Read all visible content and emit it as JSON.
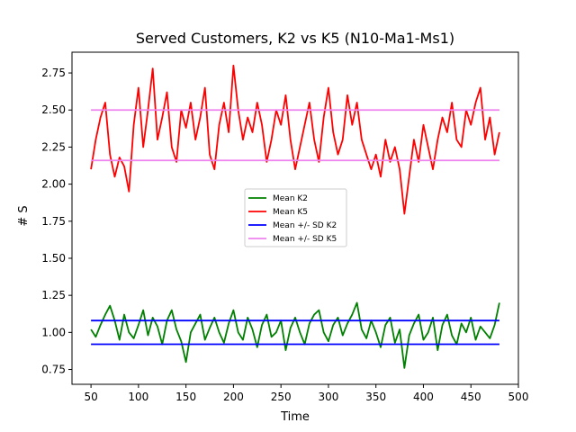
{
  "chart_data": {
    "type": "line",
    "title": "Served Customers, K2 vs K5 (N10-Ma1-Ms1)",
    "xlabel": "Time",
    "ylabel": "# S",
    "xlim": [
      30,
      500
    ],
    "ylim": [
      0.65,
      2.89
    ],
    "xticks": [
      50,
      100,
      150,
      200,
      250,
      300,
      350,
      400,
      450,
      500
    ],
    "yticks": [
      0.75,
      1.0,
      1.25,
      1.5,
      1.75,
      2.0,
      2.25,
      2.5,
      2.75
    ],
    "legend_position": "center",
    "legend": [
      {
        "label": "Mean K2",
        "color": "#008000"
      },
      {
        "label": "Mean K5",
        "color": "#ff0000"
      },
      {
        "label": "Mean +/- SD K2",
        "color": "#0000ff"
      },
      {
        "label": "Mean +/- SD K5",
        "color": "#ee82ee"
      }
    ],
    "series": [
      {
        "name": "Mean K2",
        "color": "#008000",
        "x": [
          50,
          55,
          60,
          65,
          70,
          75,
          80,
          85,
          90,
          95,
          100,
          105,
          110,
          115,
          120,
          125,
          130,
          135,
          140,
          145,
          150,
          155,
          160,
          165,
          170,
          175,
          180,
          185,
          190,
          195,
          200,
          205,
          210,
          215,
          220,
          225,
          230,
          235,
          240,
          245,
          250,
          255,
          260,
          265,
          270,
          275,
          280,
          285,
          290,
          295,
          300,
          305,
          310,
          315,
          320,
          325,
          330,
          335,
          340,
          345,
          350,
          355,
          360,
          365,
          370,
          375,
          380,
          385,
          390,
          395,
          400,
          405,
          410,
          415,
          420,
          425,
          430,
          435,
          440,
          445,
          450,
          455,
          460,
          465,
          470,
          475,
          480
        ],
        "y": [
          1.02,
          0.97,
          1.05,
          1.12,
          1.18,
          1.08,
          0.95,
          1.12,
          1.0,
          0.96,
          1.05,
          1.15,
          0.98,
          1.1,
          1.04,
          0.92,
          1.08,
          1.15,
          1.02,
          0.94,
          0.8,
          1.0,
          1.06,
          1.12,
          0.95,
          1.03,
          1.1,
          1.0,
          0.93,
          1.06,
          1.15,
          1.0,
          0.95,
          1.1,
          1.02,
          0.9,
          1.05,
          1.12,
          0.97,
          1.0,
          1.08,
          0.88,
          1.03,
          1.1,
          1.0,
          0.92,
          1.06,
          1.12,
          1.15,
          1.0,
          0.94,
          1.05,
          1.1,
          0.98,
          1.06,
          1.12,
          1.2,
          1.02,
          0.96,
          1.08,
          1.0,
          0.9,
          1.05,
          1.1,
          0.93,
          1.02,
          0.76,
          0.98,
          1.06,
          1.12,
          0.95,
          1.0,
          1.1,
          0.88,
          1.05,
          1.12,
          0.98,
          0.92,
          1.06,
          1.0,
          1.1,
          0.95,
          1.04,
          1.0,
          0.96,
          1.05,
          1.2
        ]
      },
      {
        "name": "Mean K5",
        "color": "#ff0000",
        "x": [
          50,
          55,
          60,
          65,
          70,
          75,
          80,
          85,
          90,
          95,
          100,
          105,
          110,
          115,
          120,
          125,
          130,
          135,
          140,
          145,
          150,
          155,
          160,
          165,
          170,
          175,
          180,
          185,
          190,
          195,
          200,
          205,
          210,
          215,
          220,
          225,
          230,
          235,
          240,
          245,
          250,
          255,
          260,
          265,
          270,
          275,
          280,
          285,
          290,
          295,
          300,
          305,
          310,
          315,
          320,
          325,
          330,
          335,
          340,
          345,
          350,
          355,
          360,
          365,
          370,
          375,
          380,
          385,
          390,
          395,
          400,
          405,
          410,
          415,
          420,
          425,
          430,
          435,
          440,
          445,
          450,
          455,
          460,
          465,
          470,
          475,
          480
        ],
        "y": [
          2.1,
          2.3,
          2.45,
          2.55,
          2.2,
          2.05,
          2.18,
          2.12,
          1.95,
          2.4,
          2.65,
          2.25,
          2.5,
          2.78,
          2.3,
          2.45,
          2.62,
          2.25,
          2.15,
          2.5,
          2.38,
          2.55,
          2.3,
          2.45,
          2.65,
          2.2,
          2.1,
          2.4,
          2.55,
          2.35,
          2.8,
          2.5,
          2.3,
          2.45,
          2.35,
          2.55,
          2.4,
          2.15,
          2.3,
          2.5,
          2.4,
          2.6,
          2.3,
          2.1,
          2.25,
          2.4,
          2.55,
          2.3,
          2.15,
          2.45,
          2.65,
          2.35,
          2.2,
          2.3,
          2.6,
          2.4,
          2.55,
          2.3,
          2.2,
          2.1,
          2.2,
          2.05,
          2.3,
          2.15,
          2.25,
          2.1,
          1.8,
          2.05,
          2.3,
          2.15,
          2.4,
          2.25,
          2.1,
          2.3,
          2.45,
          2.35,
          2.55,
          2.3,
          2.25,
          2.5,
          2.4,
          2.55,
          2.65,
          2.3,
          2.45,
          2.2,
          2.35
        ]
      },
      {
        "name": "Mean +/- SD K2",
        "color": "#0000ff",
        "x": [
          50,
          480
        ],
        "upper": 1.08,
        "lower": 0.92
      },
      {
        "name": "Mean +/- SD K5",
        "color": "#ee82ee",
        "x": [
          50,
          480
        ],
        "upper": 2.5,
        "lower": 2.16
      }
    ]
  }
}
